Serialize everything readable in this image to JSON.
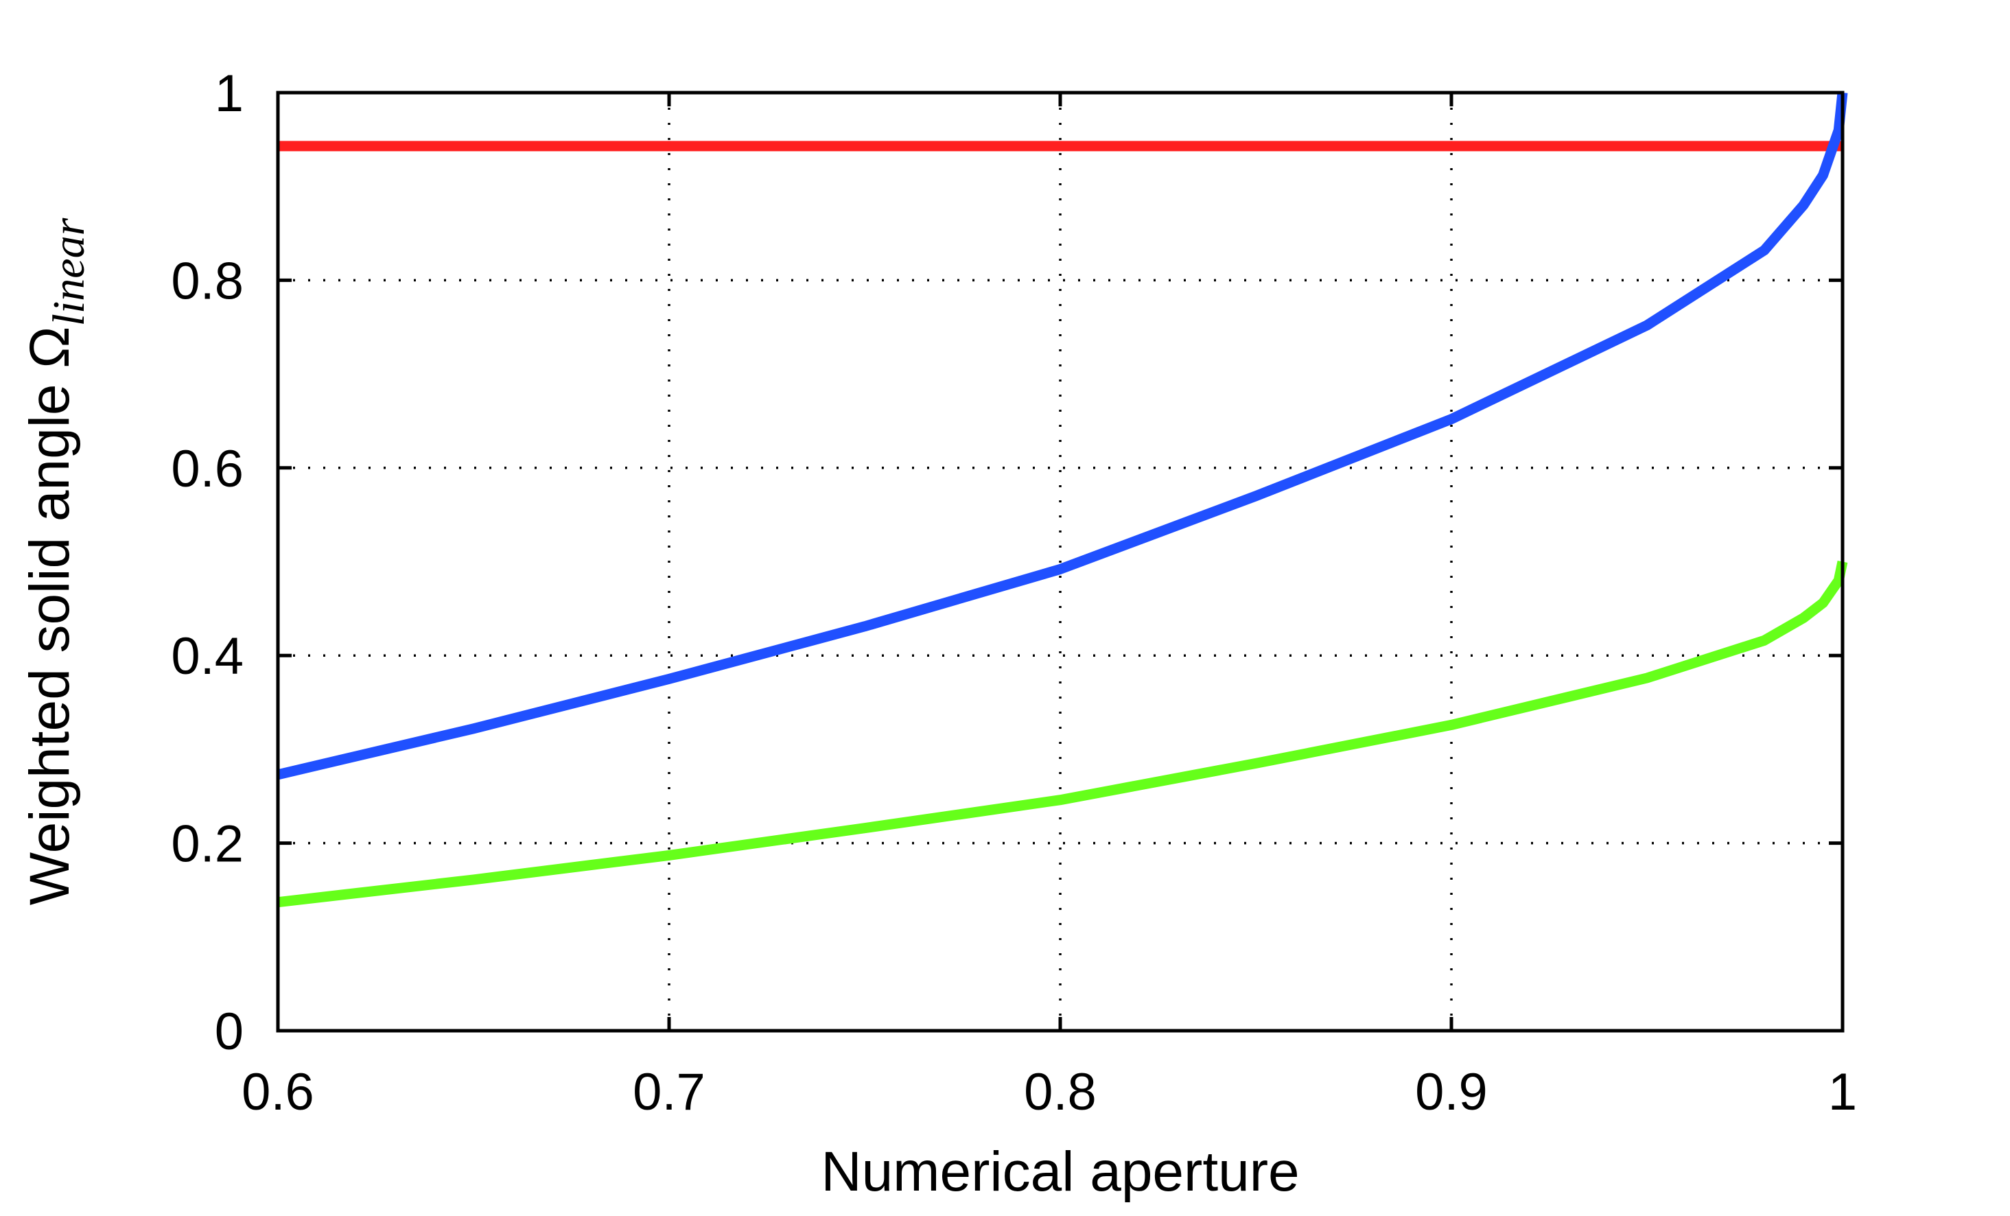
{
  "chart_data": {
    "type": "line",
    "title": "",
    "xlabel": "Numerical aperture",
    "ylabel": {
      "main": "Weighted solid angle Ω",
      "subscript": "linear"
    },
    "xlim": [
      0.6,
      1.0
    ],
    "ylim": [
      0,
      1.0
    ],
    "xticks": [
      0.6,
      0.7,
      0.8,
      0.9,
      1.0
    ],
    "xtick_labels": [
      "0.6",
      "0.7",
      "0.8",
      "0.9",
      "1"
    ],
    "yticks": [
      0,
      0.2,
      0.4,
      0.6,
      0.8,
      1.0
    ],
    "ytick_labels": [
      "0",
      "0.2",
      "0.4",
      "0.6",
      "0.8",
      "1"
    ],
    "grid": true,
    "grid_style": "dotted",
    "series": [
      {
        "color": "#ff2020",
        "x": [
          0.6,
          0.7,
          0.8,
          0.9,
          1.0
        ],
        "y": [
          0.943,
          0.943,
          0.943,
          0.943,
          0.943
        ]
      },
      {
        "color": "#2050ff",
        "x": [
          0.6,
          0.65,
          0.7,
          0.75,
          0.8,
          0.85,
          0.9,
          0.95,
          0.98,
          0.99,
          0.995,
          0.999,
          1.0
        ],
        "y": [
          0.273,
          0.322,
          0.375,
          0.431,
          0.492,
          0.57,
          0.652,
          0.752,
          0.832,
          0.88,
          0.912,
          0.96,
          1.0
        ]
      },
      {
        "color": "#66ff1a",
        "x": [
          0.6,
          0.65,
          0.7,
          0.75,
          0.8,
          0.85,
          0.9,
          0.95,
          0.98,
          0.99,
          0.995,
          0.999,
          1.0
        ],
        "y": [
          0.137,
          0.161,
          0.187,
          0.216,
          0.246,
          0.285,
          0.326,
          0.376,
          0.416,
          0.44,
          0.456,
          0.48,
          0.5
        ]
      }
    ]
  }
}
